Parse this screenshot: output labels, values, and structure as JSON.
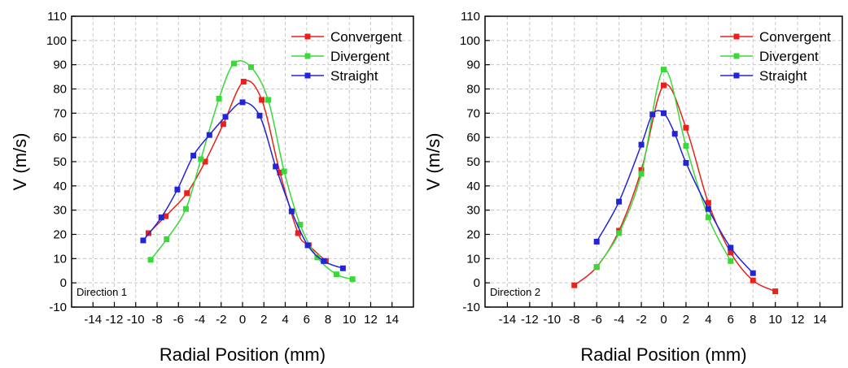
{
  "chart_data": [
    {
      "type": "line",
      "xlabel": "Radial Position (mm)",
      "ylabel": "V (m/s)",
      "xlim": [
        -16,
        16
      ],
      "ylim": [
        -10,
        110
      ],
      "xticks": [
        -14,
        -12,
        -10,
        -8,
        -6,
        -4,
        -2,
        0,
        2,
        4,
        6,
        8,
        10,
        12,
        14
      ],
      "yticks": [
        -10,
        0,
        10,
        20,
        30,
        40,
        50,
        60,
        70,
        80,
        90,
        100,
        110
      ],
      "grid": true,
      "legend_position": "top-right",
      "annotation": "Direction 1",
      "series": [
        {
          "name": "Convergent",
          "color": "#e8211d",
          "x": [
            -8.8,
            -7.2,
            -5.2,
            -3.5,
            -1.8,
            0.1,
            1.8,
            3.5,
            5.2,
            6.2,
            7.8
          ],
          "y": [
            20.5,
            27.5,
            37,
            50,
            65.5,
            83,
            75.5,
            45.5,
            20.5,
            15.5,
            9
          ]
        },
        {
          "name": "Divergent",
          "color": "#3ad83a",
          "x": [
            -8.6,
            -7.1,
            -5.3,
            -3.9,
            -2.2,
            -0.8,
            0.8,
            2.4,
            3.9,
            5.4,
            7.0,
            8.8,
            10.3
          ],
          "y": [
            9.5,
            18,
            30.5,
            51,
            76,
            90.5,
            89,
            75.5,
            46,
            24,
            10.5,
            3.5,
            1.5
          ]
        },
        {
          "name": "Straight",
          "color": "#2323d8",
          "x": [
            -9.3,
            -7.6,
            -6.1,
            -4.6,
            -3.1,
            -1.6,
            0.0,
            1.6,
            3.1,
            4.6,
            6.1,
            7.6,
            9.4
          ],
          "y": [
            17.5,
            27,
            38.5,
            52.5,
            61,
            68.5,
            74.5,
            69,
            48,
            29.5,
            15.5,
            9,
            6
          ]
        }
      ]
    },
    {
      "type": "line",
      "xlabel": "Radial Position (mm)",
      "ylabel": "V (m/s)",
      "xlim": [
        -16,
        16
      ],
      "ylim": [
        -10,
        110
      ],
      "xticks": [
        -14,
        -12,
        -10,
        -8,
        -6,
        -4,
        -2,
        0,
        2,
        4,
        6,
        8,
        10,
        12,
        14
      ],
      "yticks": [
        -10,
        0,
        10,
        20,
        30,
        40,
        50,
        60,
        70,
        80,
        90,
        100,
        110
      ],
      "grid": true,
      "legend_position": "top-right",
      "annotation": "Direction 2",
      "series": [
        {
          "name": "Convergent",
          "color": "#e8211d",
          "x": [
            -8,
            -6,
            -4,
            -2,
            0,
            2,
            4,
            6,
            8,
            10
          ],
          "y": [
            -1,
            6.5,
            21.5,
            46.5,
            81.5,
            64,
            33,
            12.5,
            1,
            -3.5
          ]
        },
        {
          "name": "Divergent",
          "color": "#3ad83a",
          "x": [
            -6,
            -4,
            -2,
            0,
            2,
            4,
            6
          ],
          "y": [
            6.5,
            20.5,
            45,
            88,
            56.5,
            27,
            9
          ]
        },
        {
          "name": "Straight",
          "color": "#2323d8",
          "x": [
            -6,
            -4,
            -2,
            -1,
            0,
            1,
            2,
            4,
            6,
            8
          ],
          "y": [
            17,
            33.5,
            57,
            69.5,
            70,
            61.5,
            49.5,
            30.5,
            14.5,
            4
          ]
        }
      ]
    }
  ]
}
